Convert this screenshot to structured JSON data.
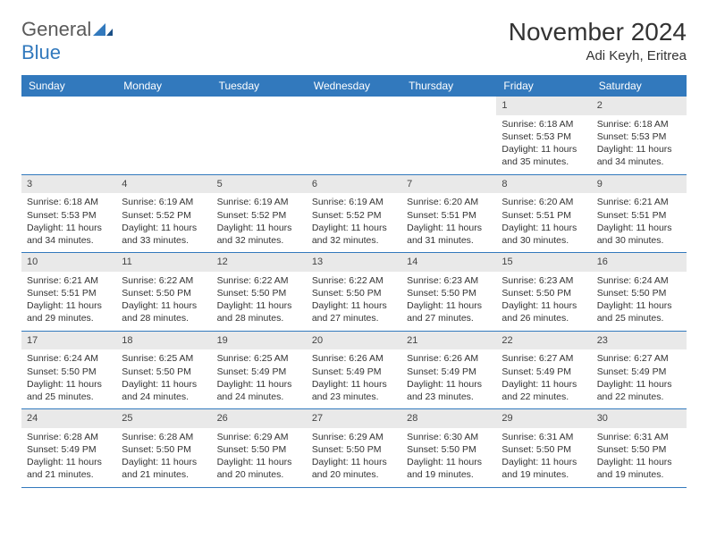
{
  "logo": {
    "word1": "General",
    "word2": "Blue"
  },
  "title": "November 2024",
  "subtitle": "Adi Keyh, Eritrea",
  "colors": {
    "header_bg": "#3279bd",
    "header_text": "#ffffff",
    "daynum_bg": "#e9e9e9",
    "text": "#333333",
    "logo_gray": "#5a5a5a",
    "logo_blue": "#3279bd",
    "row_border": "#3279bd"
  },
  "typography": {
    "title_fontsize": 28,
    "subtitle_fontsize": 15,
    "weekday_fontsize": 12,
    "body_fontsize": 10.5
  },
  "weekdays": [
    "Sunday",
    "Monday",
    "Tuesday",
    "Wednesday",
    "Thursday",
    "Friday",
    "Saturday"
  ],
  "weeks": [
    [
      {
        "empty": true
      },
      {
        "empty": true
      },
      {
        "empty": true
      },
      {
        "empty": true
      },
      {
        "empty": true
      },
      {
        "day": "1",
        "sunrise": "Sunrise: 6:18 AM",
        "sunset": "Sunset: 5:53 PM",
        "daylight": "Daylight: 11 hours and 35 minutes."
      },
      {
        "day": "2",
        "sunrise": "Sunrise: 6:18 AM",
        "sunset": "Sunset: 5:53 PM",
        "daylight": "Daylight: 11 hours and 34 minutes."
      }
    ],
    [
      {
        "day": "3",
        "sunrise": "Sunrise: 6:18 AM",
        "sunset": "Sunset: 5:53 PM",
        "daylight": "Daylight: 11 hours and 34 minutes."
      },
      {
        "day": "4",
        "sunrise": "Sunrise: 6:19 AM",
        "sunset": "Sunset: 5:52 PM",
        "daylight": "Daylight: 11 hours and 33 minutes."
      },
      {
        "day": "5",
        "sunrise": "Sunrise: 6:19 AM",
        "sunset": "Sunset: 5:52 PM",
        "daylight": "Daylight: 11 hours and 32 minutes."
      },
      {
        "day": "6",
        "sunrise": "Sunrise: 6:19 AM",
        "sunset": "Sunset: 5:52 PM",
        "daylight": "Daylight: 11 hours and 32 minutes."
      },
      {
        "day": "7",
        "sunrise": "Sunrise: 6:20 AM",
        "sunset": "Sunset: 5:51 PM",
        "daylight": "Daylight: 11 hours and 31 minutes."
      },
      {
        "day": "8",
        "sunrise": "Sunrise: 6:20 AM",
        "sunset": "Sunset: 5:51 PM",
        "daylight": "Daylight: 11 hours and 30 minutes."
      },
      {
        "day": "9",
        "sunrise": "Sunrise: 6:21 AM",
        "sunset": "Sunset: 5:51 PM",
        "daylight": "Daylight: 11 hours and 30 minutes."
      }
    ],
    [
      {
        "day": "10",
        "sunrise": "Sunrise: 6:21 AM",
        "sunset": "Sunset: 5:51 PM",
        "daylight": "Daylight: 11 hours and 29 minutes."
      },
      {
        "day": "11",
        "sunrise": "Sunrise: 6:22 AM",
        "sunset": "Sunset: 5:50 PM",
        "daylight": "Daylight: 11 hours and 28 minutes."
      },
      {
        "day": "12",
        "sunrise": "Sunrise: 6:22 AM",
        "sunset": "Sunset: 5:50 PM",
        "daylight": "Daylight: 11 hours and 28 minutes."
      },
      {
        "day": "13",
        "sunrise": "Sunrise: 6:22 AM",
        "sunset": "Sunset: 5:50 PM",
        "daylight": "Daylight: 11 hours and 27 minutes."
      },
      {
        "day": "14",
        "sunrise": "Sunrise: 6:23 AM",
        "sunset": "Sunset: 5:50 PM",
        "daylight": "Daylight: 11 hours and 27 minutes."
      },
      {
        "day": "15",
        "sunrise": "Sunrise: 6:23 AM",
        "sunset": "Sunset: 5:50 PM",
        "daylight": "Daylight: 11 hours and 26 minutes."
      },
      {
        "day": "16",
        "sunrise": "Sunrise: 6:24 AM",
        "sunset": "Sunset: 5:50 PM",
        "daylight": "Daylight: 11 hours and 25 minutes."
      }
    ],
    [
      {
        "day": "17",
        "sunrise": "Sunrise: 6:24 AM",
        "sunset": "Sunset: 5:50 PM",
        "daylight": "Daylight: 11 hours and 25 minutes."
      },
      {
        "day": "18",
        "sunrise": "Sunrise: 6:25 AM",
        "sunset": "Sunset: 5:50 PM",
        "daylight": "Daylight: 11 hours and 24 minutes."
      },
      {
        "day": "19",
        "sunrise": "Sunrise: 6:25 AM",
        "sunset": "Sunset: 5:49 PM",
        "daylight": "Daylight: 11 hours and 24 minutes."
      },
      {
        "day": "20",
        "sunrise": "Sunrise: 6:26 AM",
        "sunset": "Sunset: 5:49 PM",
        "daylight": "Daylight: 11 hours and 23 minutes."
      },
      {
        "day": "21",
        "sunrise": "Sunrise: 6:26 AM",
        "sunset": "Sunset: 5:49 PM",
        "daylight": "Daylight: 11 hours and 23 minutes."
      },
      {
        "day": "22",
        "sunrise": "Sunrise: 6:27 AM",
        "sunset": "Sunset: 5:49 PM",
        "daylight": "Daylight: 11 hours and 22 minutes."
      },
      {
        "day": "23",
        "sunrise": "Sunrise: 6:27 AM",
        "sunset": "Sunset: 5:49 PM",
        "daylight": "Daylight: 11 hours and 22 minutes."
      }
    ],
    [
      {
        "day": "24",
        "sunrise": "Sunrise: 6:28 AM",
        "sunset": "Sunset: 5:49 PM",
        "daylight": "Daylight: 11 hours and 21 minutes."
      },
      {
        "day": "25",
        "sunrise": "Sunrise: 6:28 AM",
        "sunset": "Sunset: 5:50 PM",
        "daylight": "Daylight: 11 hours and 21 minutes."
      },
      {
        "day": "26",
        "sunrise": "Sunrise: 6:29 AM",
        "sunset": "Sunset: 5:50 PM",
        "daylight": "Daylight: 11 hours and 20 minutes."
      },
      {
        "day": "27",
        "sunrise": "Sunrise: 6:29 AM",
        "sunset": "Sunset: 5:50 PM",
        "daylight": "Daylight: 11 hours and 20 minutes."
      },
      {
        "day": "28",
        "sunrise": "Sunrise: 6:30 AM",
        "sunset": "Sunset: 5:50 PM",
        "daylight": "Daylight: 11 hours and 19 minutes."
      },
      {
        "day": "29",
        "sunrise": "Sunrise: 6:31 AM",
        "sunset": "Sunset: 5:50 PM",
        "daylight": "Daylight: 11 hours and 19 minutes."
      },
      {
        "day": "30",
        "sunrise": "Sunrise: 6:31 AM",
        "sunset": "Sunset: 5:50 PM",
        "daylight": "Daylight: 11 hours and 19 minutes."
      }
    ]
  ]
}
